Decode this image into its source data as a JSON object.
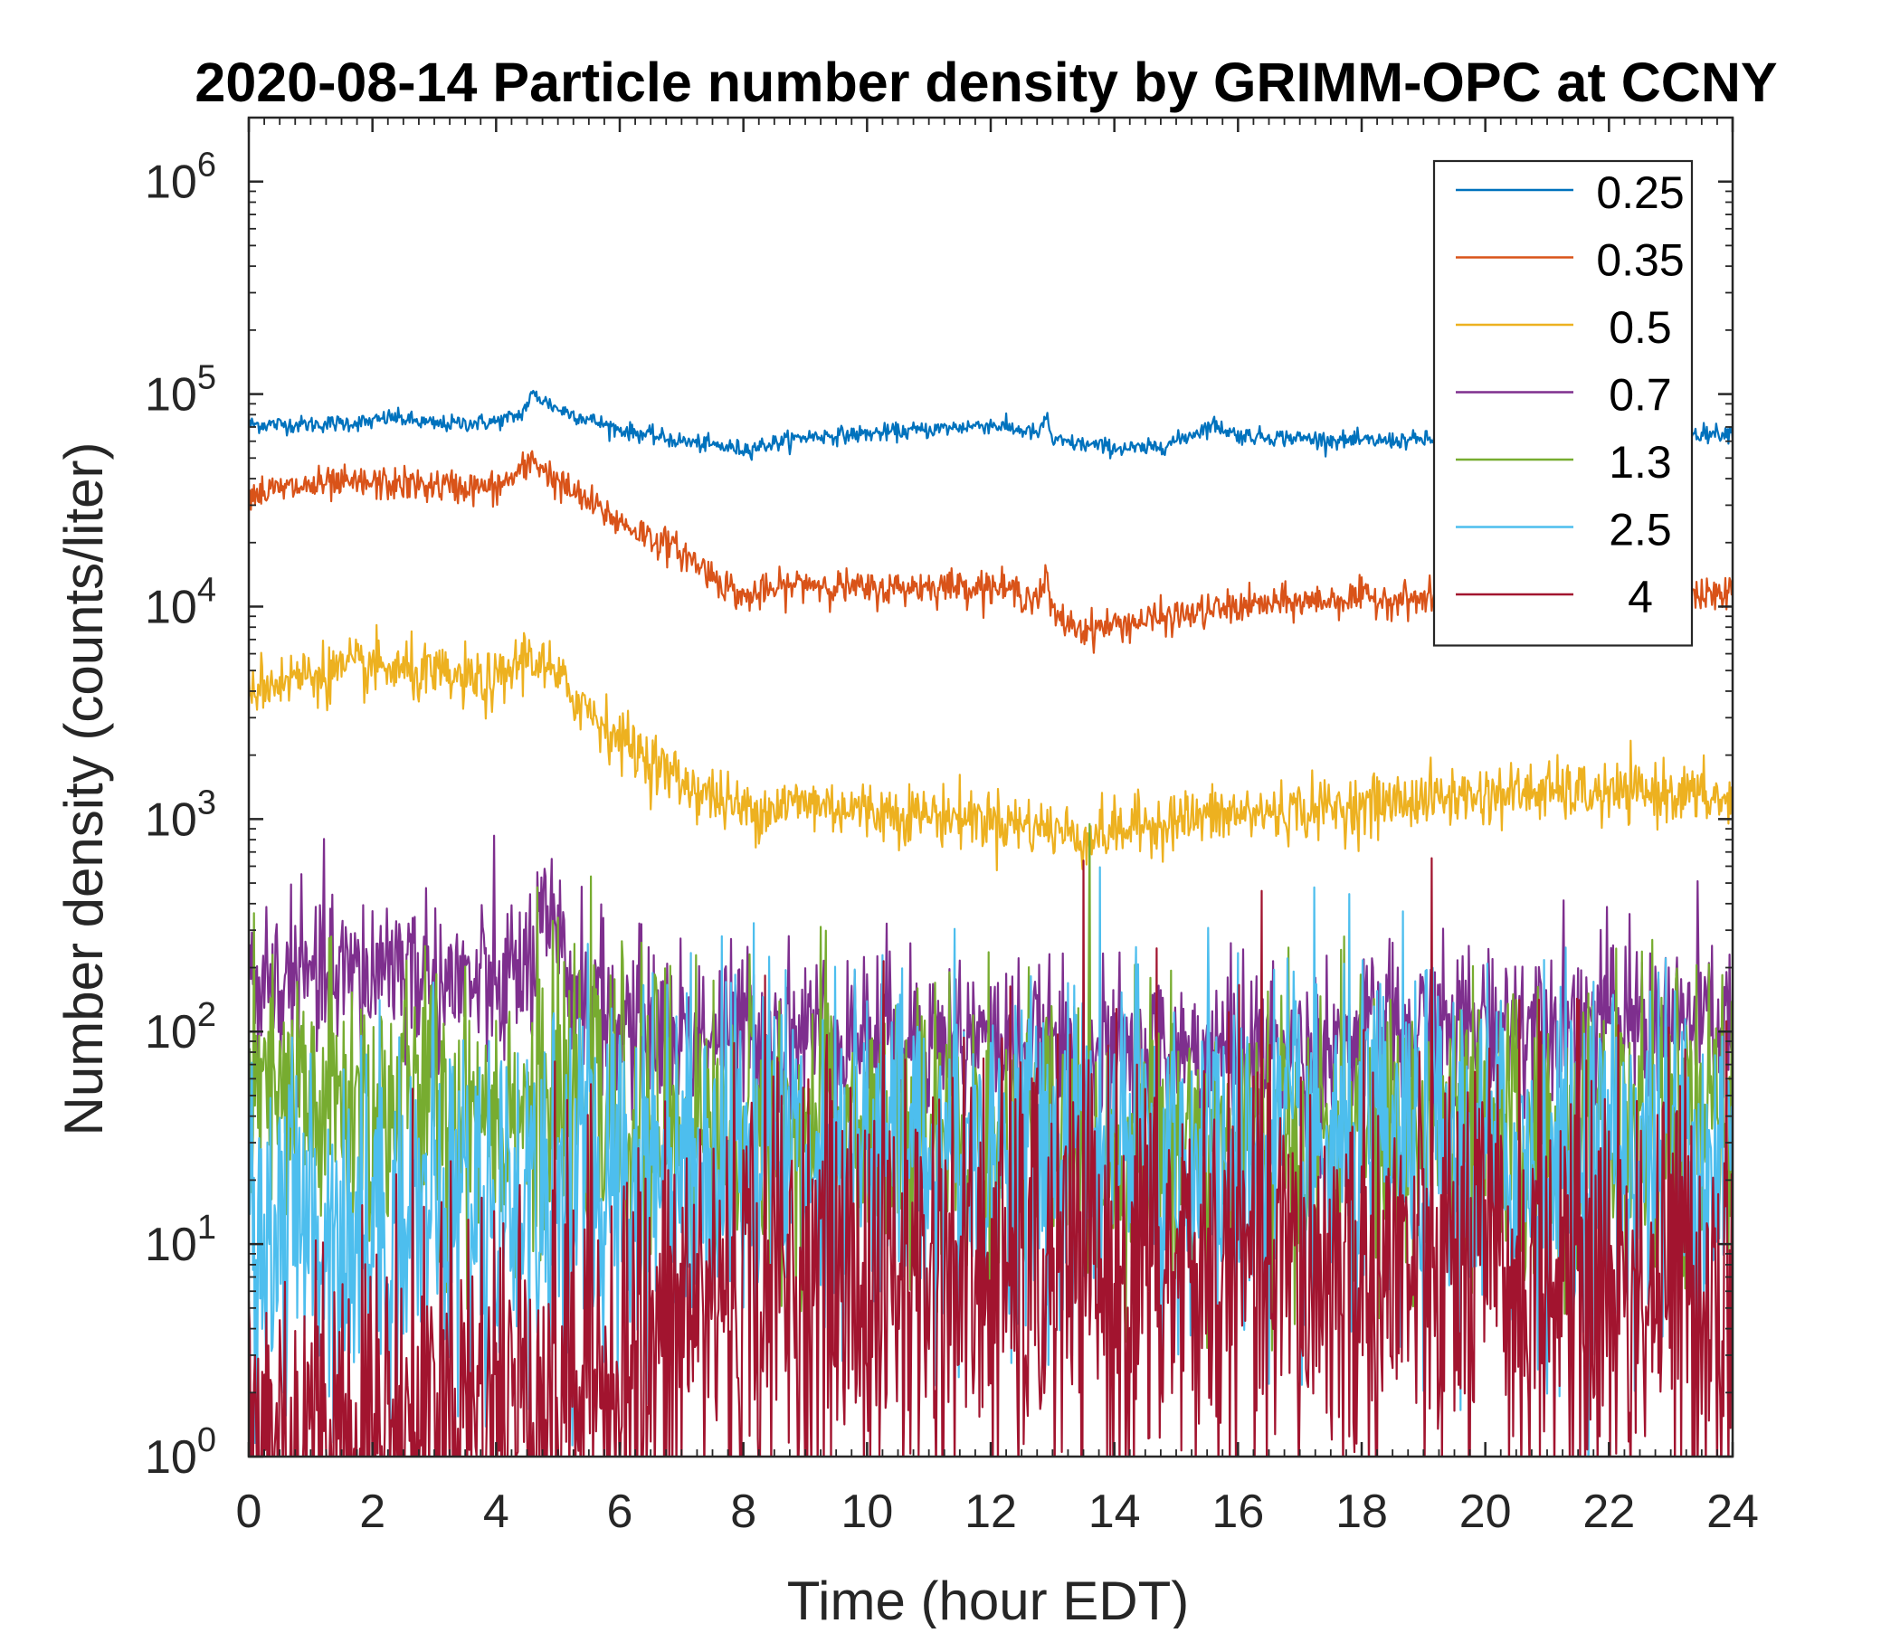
{
  "chart_data": {
    "type": "line",
    "title": "2020-08-14 Particle number density by GRIMM-OPC at CCNY",
    "xlabel": "Time (hour EDT)",
    "ylabel": "Number density (counts/liter)",
    "xlim": [
      0,
      24
    ],
    "ylim": [
      1,
      2000000
    ],
    "y_scale": "log",
    "x_ticks": [
      "0",
      "2",
      "4",
      "6",
      "8",
      "10",
      "12",
      "14",
      "16",
      "18",
      "20",
      "22",
      "24"
    ],
    "y_ticks": [
      {
        "base": "10",
        "exp": "0"
      },
      {
        "base": "10",
        "exp": "1"
      },
      {
        "base": "10",
        "exp": "2"
      },
      {
        "base": "10",
        "exp": "3"
      },
      {
        "base": "10",
        "exp": "4"
      },
      {
        "base": "10",
        "exp": "5"
      },
      {
        "base": "10",
        "exp": "6"
      }
    ],
    "grid": false,
    "legend_position": "top-right",
    "series": [
      {
        "name": "0.25",
        "color": "#0072BD",
        "noise": 0.02,
        "x": [
          0,
          1,
          2,
          2.3,
          3,
          4,
          4.4,
          4.6,
          5,
          6,
          7,
          8,
          9,
          10,
          11,
          12,
          12.8,
          12.9,
          13,
          14,
          14.5,
          15,
          15.6,
          16,
          17,
          18,
          20,
          22,
          24
        ],
        "y": [
          72000,
          72000,
          74000,
          78000,
          72000,
          74000,
          80000,
          100000,
          85000,
          68000,
          60000,
          55000,
          63000,
          65000,
          68000,
          72000,
          65000,
          80000,
          60000,
          56000,
          55000,
          60000,
          72000,
          64000,
          62000,
          60000,
          62000,
          64000,
          66000
        ]
      },
      {
        "name": "0.35",
        "color": "#D95319",
        "noise": 0.04,
        "x": [
          0,
          1,
          2,
          3,
          4,
          4.5,
          4.6,
          5,
          6,
          7,
          8,
          9,
          10,
          11,
          12,
          12.8,
          12.9,
          13,
          13.5,
          14,
          15,
          16,
          17,
          18,
          20,
          22,
          24
        ],
        "y": [
          34000,
          37000,
          38000,
          37000,
          36000,
          45000,
          50000,
          38000,
          25000,
          18000,
          11000,
          13000,
          12000,
          12500,
          12500,
          11000,
          14000,
          9000,
          7800,
          8200,
          9000,
          10000,
          10500,
          11000,
          10500,
          11000,
          11500
        ]
      },
      {
        "name": "0.5",
        "color": "#EDB120",
        "noise": 0.07,
        "x": [
          0,
          1,
          2,
          3,
          4,
          4.5,
          4.7,
          5,
          6,
          7,
          8,
          9,
          10,
          11,
          12,
          13,
          13.5,
          14,
          15,
          16,
          17,
          18,
          19,
          20,
          21,
          22,
          23,
          24
        ],
        "y": [
          4200,
          4800,
          5200,
          4700,
          4300,
          6000,
          5500,
          4500,
          2400,
          1500,
          1100,
          1200,
          1100,
          1050,
          1000,
          900,
          820,
          880,
          1000,
          1050,
          1100,
          1150,
          1250,
          1300,
          1350,
          1300,
          1350,
          1200
        ]
      },
      {
        "name": "0.7",
        "color": "#7E2F8E",
        "noise": 0.2,
        "x": [
          0,
          1,
          2,
          2.2,
          3,
          4,
          4.5,
          4.8,
          5.2,
          6,
          7,
          8,
          10,
          12,
          13,
          14,
          16,
          18,
          20,
          21,
          22,
          24
        ],
        "y": [
          170,
          175,
          180,
          230,
          170,
          160,
          200,
          300,
          180,
          110,
          100,
          100,
          100,
          90,
          75,
          75,
          80,
          90,
          110,
          120,
          115,
          110
        ]
      },
      {
        "name": "1.3",
        "color": "#77AC30",
        "noise": 0.35,
        "x": [
          0,
          4,
          6,
          8,
          12,
          16,
          20,
          24
        ],
        "y": [
          45,
          45,
          40,
          35,
          30,
          30,
          32,
          35
        ]
      },
      {
        "name": "2.5",
        "color": "#4DBEEE",
        "noise": 0.45,
        "x": [
          0,
          2,
          4,
          5,
          6,
          7,
          8,
          12,
          16,
          20,
          24
        ],
        "y": [
          12,
          13,
          16,
          18,
          22,
          26,
          28,
          26,
          25,
          24,
          25
        ]
      },
      {
        "name": "4",
        "color": "#A2142F",
        "noise": 0.55,
        "x": [
          0,
          2,
          4,
          6,
          6.8,
          7,
          8,
          12,
          16,
          20,
          24
        ],
        "y": [
          1.1,
          1.3,
          2.0,
          2.6,
          3.0,
          4.5,
          6.5,
          7.0,
          7.0,
          7.0,
          6.5
        ]
      }
    ]
  }
}
